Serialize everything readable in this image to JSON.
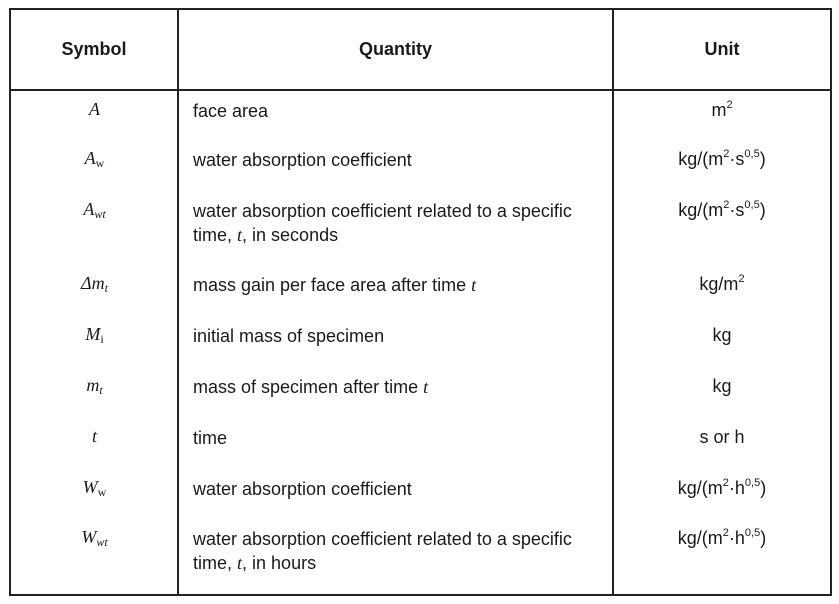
{
  "header": {
    "symbol": "Symbol",
    "quantity": "Quantity",
    "unit": "Unit"
  },
  "rows": [
    {
      "sym_main": "A",
      "sym_sub": "",
      "quantity_pre": "face area",
      "quantity_italic": "",
      "quantity_post": "",
      "unit_pre": "m",
      "unit_sup1": "2",
      "unit_mid": "",
      "unit_sup2": "",
      "unit_post": ""
    },
    {
      "sym_main": "A",
      "sym_sub": "w",
      "quantity_pre": "water absorption coefficient",
      "quantity_italic": "",
      "quantity_post": "",
      "unit_pre": "kg/(m",
      "unit_sup1": "2",
      "unit_mid": "·s",
      "unit_sup2": "0,5",
      "unit_post": ")"
    },
    {
      "sym_main": "A",
      "sym_sub": "wt",
      "quantity_pre": "water absorption coefficient related to a specific time, ",
      "quantity_italic": "t",
      "quantity_post": ", in seconds",
      "unit_pre": "kg/(m",
      "unit_sup1": "2",
      "unit_mid": "·s",
      "unit_sup2": "0,5",
      "unit_post": ")"
    },
    {
      "sym_main": "Δm",
      "sym_sub": "t",
      "quantity_pre": "mass gain per face area after time ",
      "quantity_italic": "t",
      "quantity_post": "",
      "unit_pre": "kg/m",
      "unit_sup1": "2",
      "unit_mid": "",
      "unit_sup2": "",
      "unit_post": ""
    },
    {
      "sym_main": "M",
      "sym_sub": "i",
      "quantity_pre": "initial mass of specimen",
      "quantity_italic": "",
      "quantity_post": "",
      "unit_pre": "kg",
      "unit_sup1": "",
      "unit_mid": "",
      "unit_sup2": "",
      "unit_post": ""
    },
    {
      "sym_main": "m",
      "sym_sub": "t",
      "quantity_pre": "mass of specimen after time ",
      "quantity_italic": "t",
      "quantity_post": "",
      "unit_pre": "kg",
      "unit_sup1": "",
      "unit_mid": "",
      "unit_sup2": "",
      "unit_post": ""
    },
    {
      "sym_main": "t",
      "sym_sub": "",
      "quantity_pre": "time",
      "quantity_italic": "",
      "quantity_post": "",
      "unit_pre": "s or h",
      "unit_sup1": "",
      "unit_mid": "",
      "unit_sup2": "",
      "unit_post": ""
    },
    {
      "sym_main": "W",
      "sym_sub": "w",
      "quantity_pre": "water absorption coefficient",
      "quantity_italic": "",
      "quantity_post": "",
      "unit_pre": "kg/(m",
      "unit_sup1": "2",
      "unit_mid": "·h",
      "unit_sup2": "0,5",
      "unit_post": ")"
    },
    {
      "sym_main": "W",
      "sym_sub": "wt",
      "quantity_pre": "water absorption coefficient related to a specific time, ",
      "quantity_italic": "t",
      "quantity_post": ", in hours",
      "unit_pre": "kg/(m",
      "unit_sup1": "2",
      "unit_mid": "·h",
      "unit_sup2": "0,5",
      "unit_post": ")"
    }
  ]
}
